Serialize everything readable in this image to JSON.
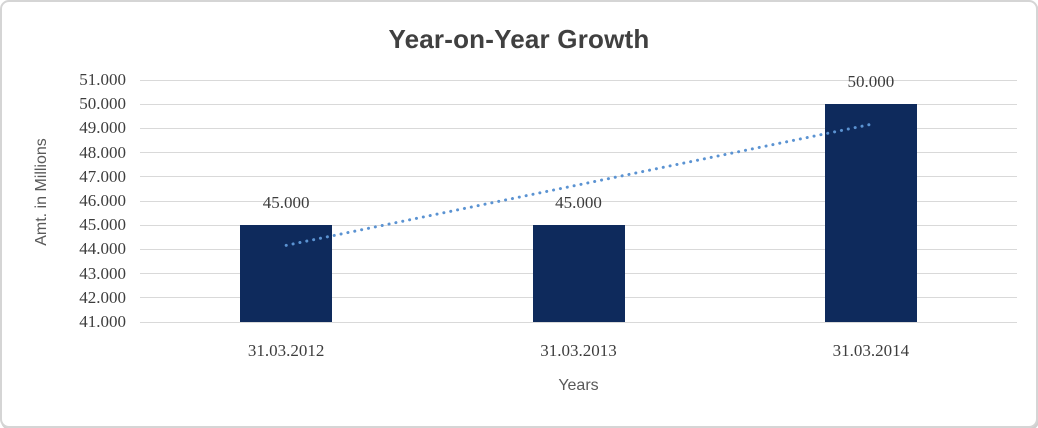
{
  "chart_data": {
    "type": "bar",
    "title": "Year-on-Year Growth",
    "xlabel": "Years",
    "ylabel": "Amt. in Millions",
    "categories": [
      "31.03.2012",
      "31.03.2013",
      "31.03.2014"
    ],
    "values": [
      45000,
      45000,
      50000
    ],
    "value_labels": [
      "45.000",
      "45.000",
      "50.000"
    ],
    "ylim": [
      41000,
      51000
    ],
    "y_tick_step": 1000,
    "y_tick_labels": [
      "41.000",
      "42.000",
      "43.000",
      "44.000",
      "45.000",
      "46.000",
      "47.000",
      "48.000",
      "49.000",
      "50.000",
      "51.000"
    ],
    "grid": true,
    "legend": "none",
    "trendline": {
      "type": "linear",
      "style": "dotted",
      "start_value": 44167,
      "end_value": 49167
    },
    "colors": {
      "bar": "#0e2a5c",
      "trendline": "#5b93d2",
      "gridline": "#d9d9d9",
      "title_text": "#404040",
      "tick_text": "#3d3d3d",
      "axis_title_text": "#595959",
      "background": "#ffffff",
      "frame_border": "#d5d5d5"
    }
  }
}
